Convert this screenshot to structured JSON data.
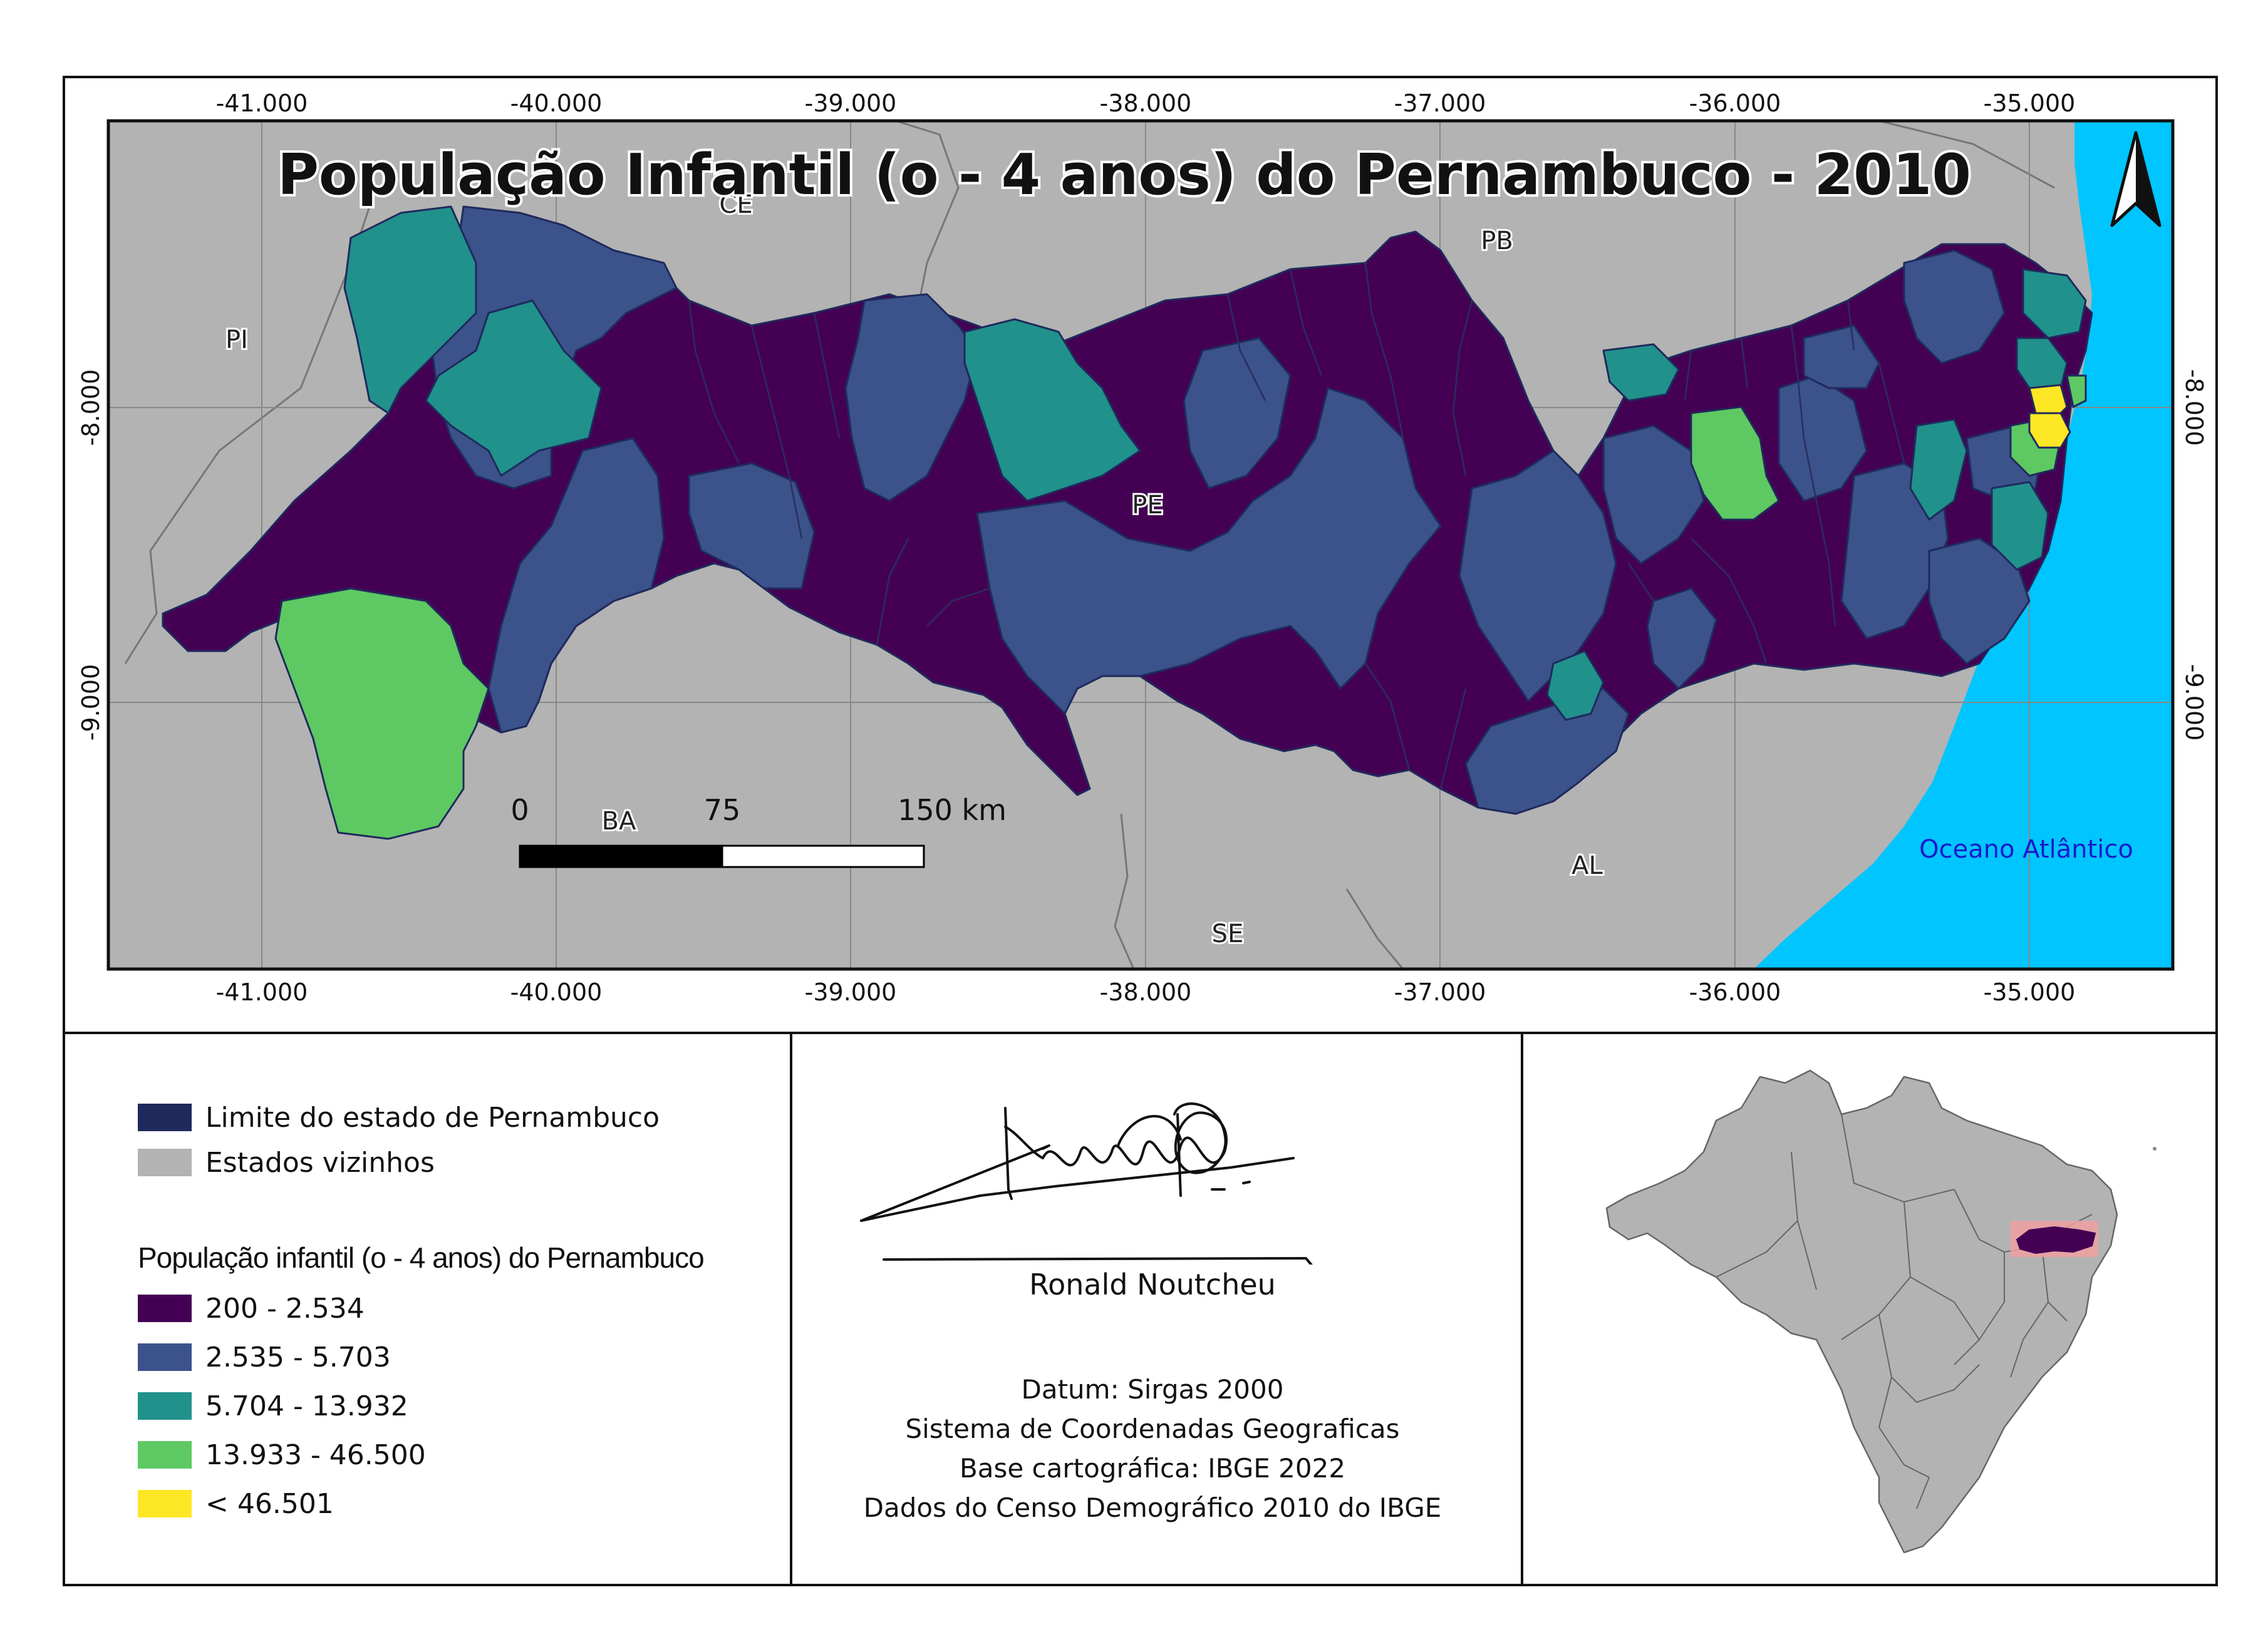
{
  "map": {
    "title": "População Infantil (o - 4 anos) do Pernambuco - 2010",
    "grid_x_labels": [
      "-41.000",
      "-40.000",
      "-39.000",
      "-38.000",
      "-37.000",
      "-36.000",
      "-35.000"
    ],
    "grid_y_labels": [
      "-8.000",
      "-9.000"
    ],
    "state_labels": {
      "ce": "CE",
      "pb": "PB",
      "pi": "PI",
      "pe": "PE",
      "ba": "BA",
      "al": "AL",
      "se": "SE"
    },
    "ocean_label": "Oceano Atlântico",
    "scale_bar": {
      "zero": "0",
      "mid": "75",
      "end": "150 km"
    },
    "north_arrow": "north-arrow-icon",
    "colors": {
      "neighbor": "#b3b3b3",
      "ocean": "#00c5ff",
      "class1": "#440154",
      "class2": "#3b528b",
      "class3": "#21918c",
      "class4": "#5ec962",
      "class5": "#fde725",
      "boundary": "#1f2a5c"
    }
  },
  "legend": {
    "items_top": [
      {
        "label": "Limite do estado de Pernambuco",
        "color": "#1f2a5c"
      },
      {
        "label": "Estados vizinhos",
        "color": "#b3b3b3"
      }
    ],
    "class_title": "População infantil (o - 4 anos) do Pernambuco",
    "classes": [
      {
        "label": "200 - 2.534",
        "color": "#440154"
      },
      {
        "label": "2.535 - 5.703",
        "color": "#3b528b"
      },
      {
        "label": "5.704 - 13.932",
        "color": "#21918c"
      },
      {
        "label": "13.933 - 46.500",
        "color": "#5ec962"
      },
      {
        "label": "< 46.501",
        "color": "#fde725"
      }
    ]
  },
  "credits": {
    "author": "Ronald Noutcheu",
    "lines": [
      "Datum: Sirgas 2000",
      "Sistema de Coordenadas Geograficas",
      "Base cartográfica: IBGE 2022",
      "Dados do Censo Demográfico 2010 do IBGE"
    ]
  }
}
